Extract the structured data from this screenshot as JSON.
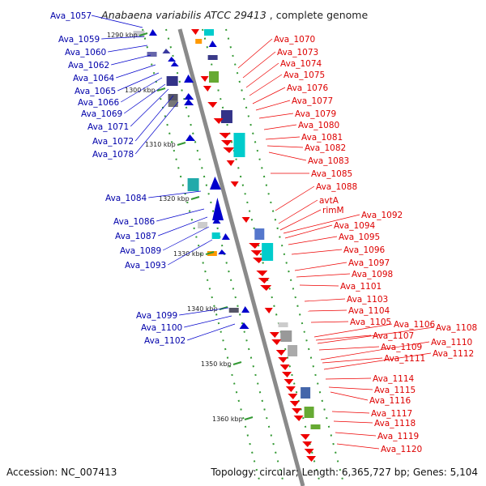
{
  "title": {
    "first_gene": "Ava_1057",
    "organism": "Anabaena variabilis ATCC 29413",
    "suffix": ", complete genome"
  },
  "scale_labels": [
    "1290 kbp",
    "1300 kbp",
    "1310 kbp",
    "1320 kbp",
    "1330 kbp",
    "1340 kbp",
    "1350 kbp",
    "1360 kbp"
  ],
  "left_genes": [
    "Ava_1059",
    "Ava_1060",
    "Ava_1062",
    "Ava_1064",
    "Ava_1065",
    "Ava_1066",
    "Ava_1069",
    "Ava_1071",
    "Ava_1072",
    "Ava_1078",
    "Ava_1084",
    "Ava_1086",
    "Ava_1087",
    "Ava_1089",
    "Ava_1093",
    "Ava_1099",
    "Ava_1100",
    "Ava_1102"
  ],
  "right_genes": [
    "Ava_1070",
    "Ava_1073",
    "Ava_1074",
    "Ava_1075",
    "Ava_1076",
    "Ava_1077",
    "Ava_1079",
    "Ava_1080",
    "Ava_1081",
    "Ava_1082",
    "Ava_1083",
    "Ava_1085",
    "Ava_1088",
    "avtA",
    "rimM",
    "Ava_1092",
    "Ava_1094",
    "Ava_1095",
    "Ava_1096",
    "Ava_1097",
    "Ava_1098",
    "Ava_1101",
    "Ava_1103",
    "Ava_1104",
    "Ava_1105",
    "Ava_1106",
    "Ava_1107",
    "Ava_1108",
    "Ava_1109",
    "Ava_1110",
    "Ava_1111",
    "Ava_1112",
    "Ava_1114",
    "Ava_1115",
    "Ava_1116",
    "Ava_1117",
    "Ava_1118",
    "Ava_1119",
    "Ava_1120"
  ],
  "footer": {
    "accession": "Accession: NC_007413",
    "summary": "Topology: circular; Length: 6,365,727 bp; Genes: 5,104"
  },
  "colors": {
    "forward_strand": "#0000cc",
    "reverse_strand": "#ee0000",
    "label_forward": "#0000aa",
    "label_reverse": "#dd0000",
    "backbone": "#8a8a8a",
    "track_dots": "#339933"
  }
}
